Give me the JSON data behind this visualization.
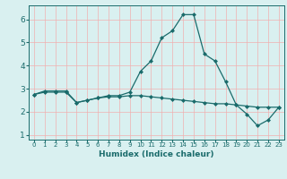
{
  "x": [
    0,
    1,
    2,
    3,
    4,
    5,
    6,
    7,
    8,
    9,
    10,
    11,
    12,
    13,
    14,
    15,
    16,
    17,
    18,
    19,
    20,
    21,
    22,
    23
  ],
  "line1": [
    2.75,
    2.9,
    2.9,
    2.9,
    2.4,
    2.5,
    2.6,
    2.7,
    2.7,
    2.85,
    3.75,
    4.2,
    5.2,
    5.5,
    6.2,
    6.2,
    4.5,
    4.2,
    3.3,
    2.3,
    1.9,
    1.4,
    1.65,
    2.2
  ],
  "line2": [
    2.75,
    2.85,
    2.85,
    2.85,
    2.4,
    2.5,
    2.6,
    2.65,
    2.65,
    2.7,
    2.7,
    2.65,
    2.6,
    2.55,
    2.5,
    2.45,
    2.4,
    2.35,
    2.35,
    2.3,
    2.25,
    2.2,
    2.2,
    2.2
  ],
  "bg_color": "#d9f0f0",
  "line_color": "#1a6b6b",
  "grid_color": "#f0b0b0",
  "xlabel": "Humidex (Indice chaleur)",
  "ylim": [
    0.8,
    6.6
  ],
  "xlim": [
    -0.5,
    23.5
  ],
  "yticks": [
    1,
    2,
    3,
    4,
    5,
    6
  ],
  "xtick_labels": [
    "0",
    "1",
    "2",
    "3",
    "4",
    "5",
    "6",
    "7",
    "8",
    "9",
    "10",
    "11",
    "12",
    "13",
    "14",
    "15",
    "16",
    "17",
    "18",
    "19",
    "20",
    "21",
    "22",
    "23"
  ]
}
